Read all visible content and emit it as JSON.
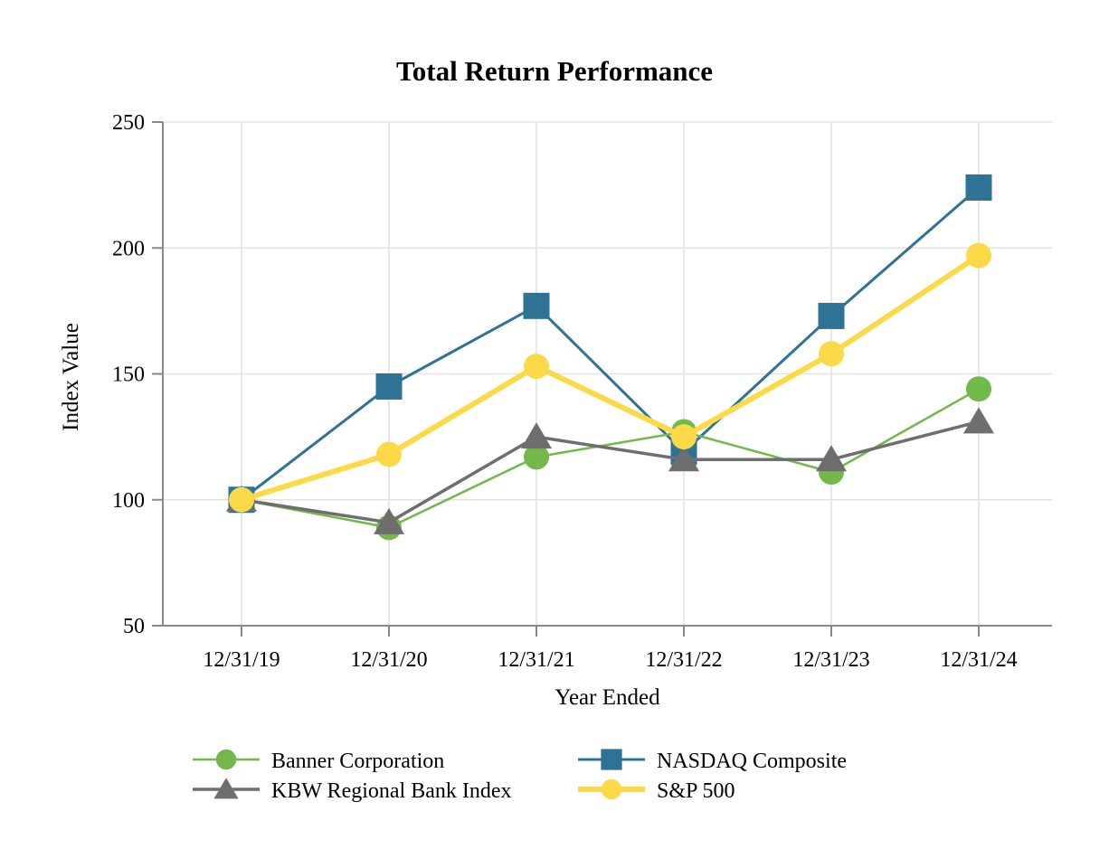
{
  "chart_data": {
    "type": "line",
    "title": "Total Return Performance",
    "xlabel": "Year Ended",
    "ylabel": "Index Value",
    "x": [
      "12/31/19",
      "12/31/20",
      "12/31/21",
      "12/31/22",
      "12/31/23",
      "12/31/24"
    ],
    "yticks": [
      50,
      100,
      150,
      200,
      250
    ],
    "ylim": [
      50,
      250
    ],
    "grid": true,
    "legend_position": "bottom",
    "series": [
      {
        "name": "Banner Corporation",
        "marker": "circle",
        "color": "#72B84A",
        "line_width": 2.5,
        "values": [
          100,
          89,
          117,
          127,
          111,
          144
        ]
      },
      {
        "name": "NASDAQ Composite",
        "marker": "square",
        "color": "#2E7296",
        "line_width": 3,
        "values": [
          100,
          145,
          177,
          119,
          173,
          224
        ]
      },
      {
        "name": "KBW Regional Bank Index",
        "marker": "triangle",
        "color": "#6E6E6E",
        "line_width": 3.5,
        "values": [
          100,
          91,
          125,
          116,
          116,
          131
        ]
      },
      {
        "name": "S&P 500",
        "marker": "circle",
        "color": "#FBD947",
        "line_width": 6,
        "values": [
          100,
          118,
          153,
          125,
          158,
          197
        ]
      }
    ],
    "z_order": [
      1,
      0,
      2,
      3
    ],
    "colors": {
      "background": "#FFFFFF",
      "axis": "#8A8A8A",
      "grid": "#E3E3E3",
      "text": "#000000"
    }
  }
}
